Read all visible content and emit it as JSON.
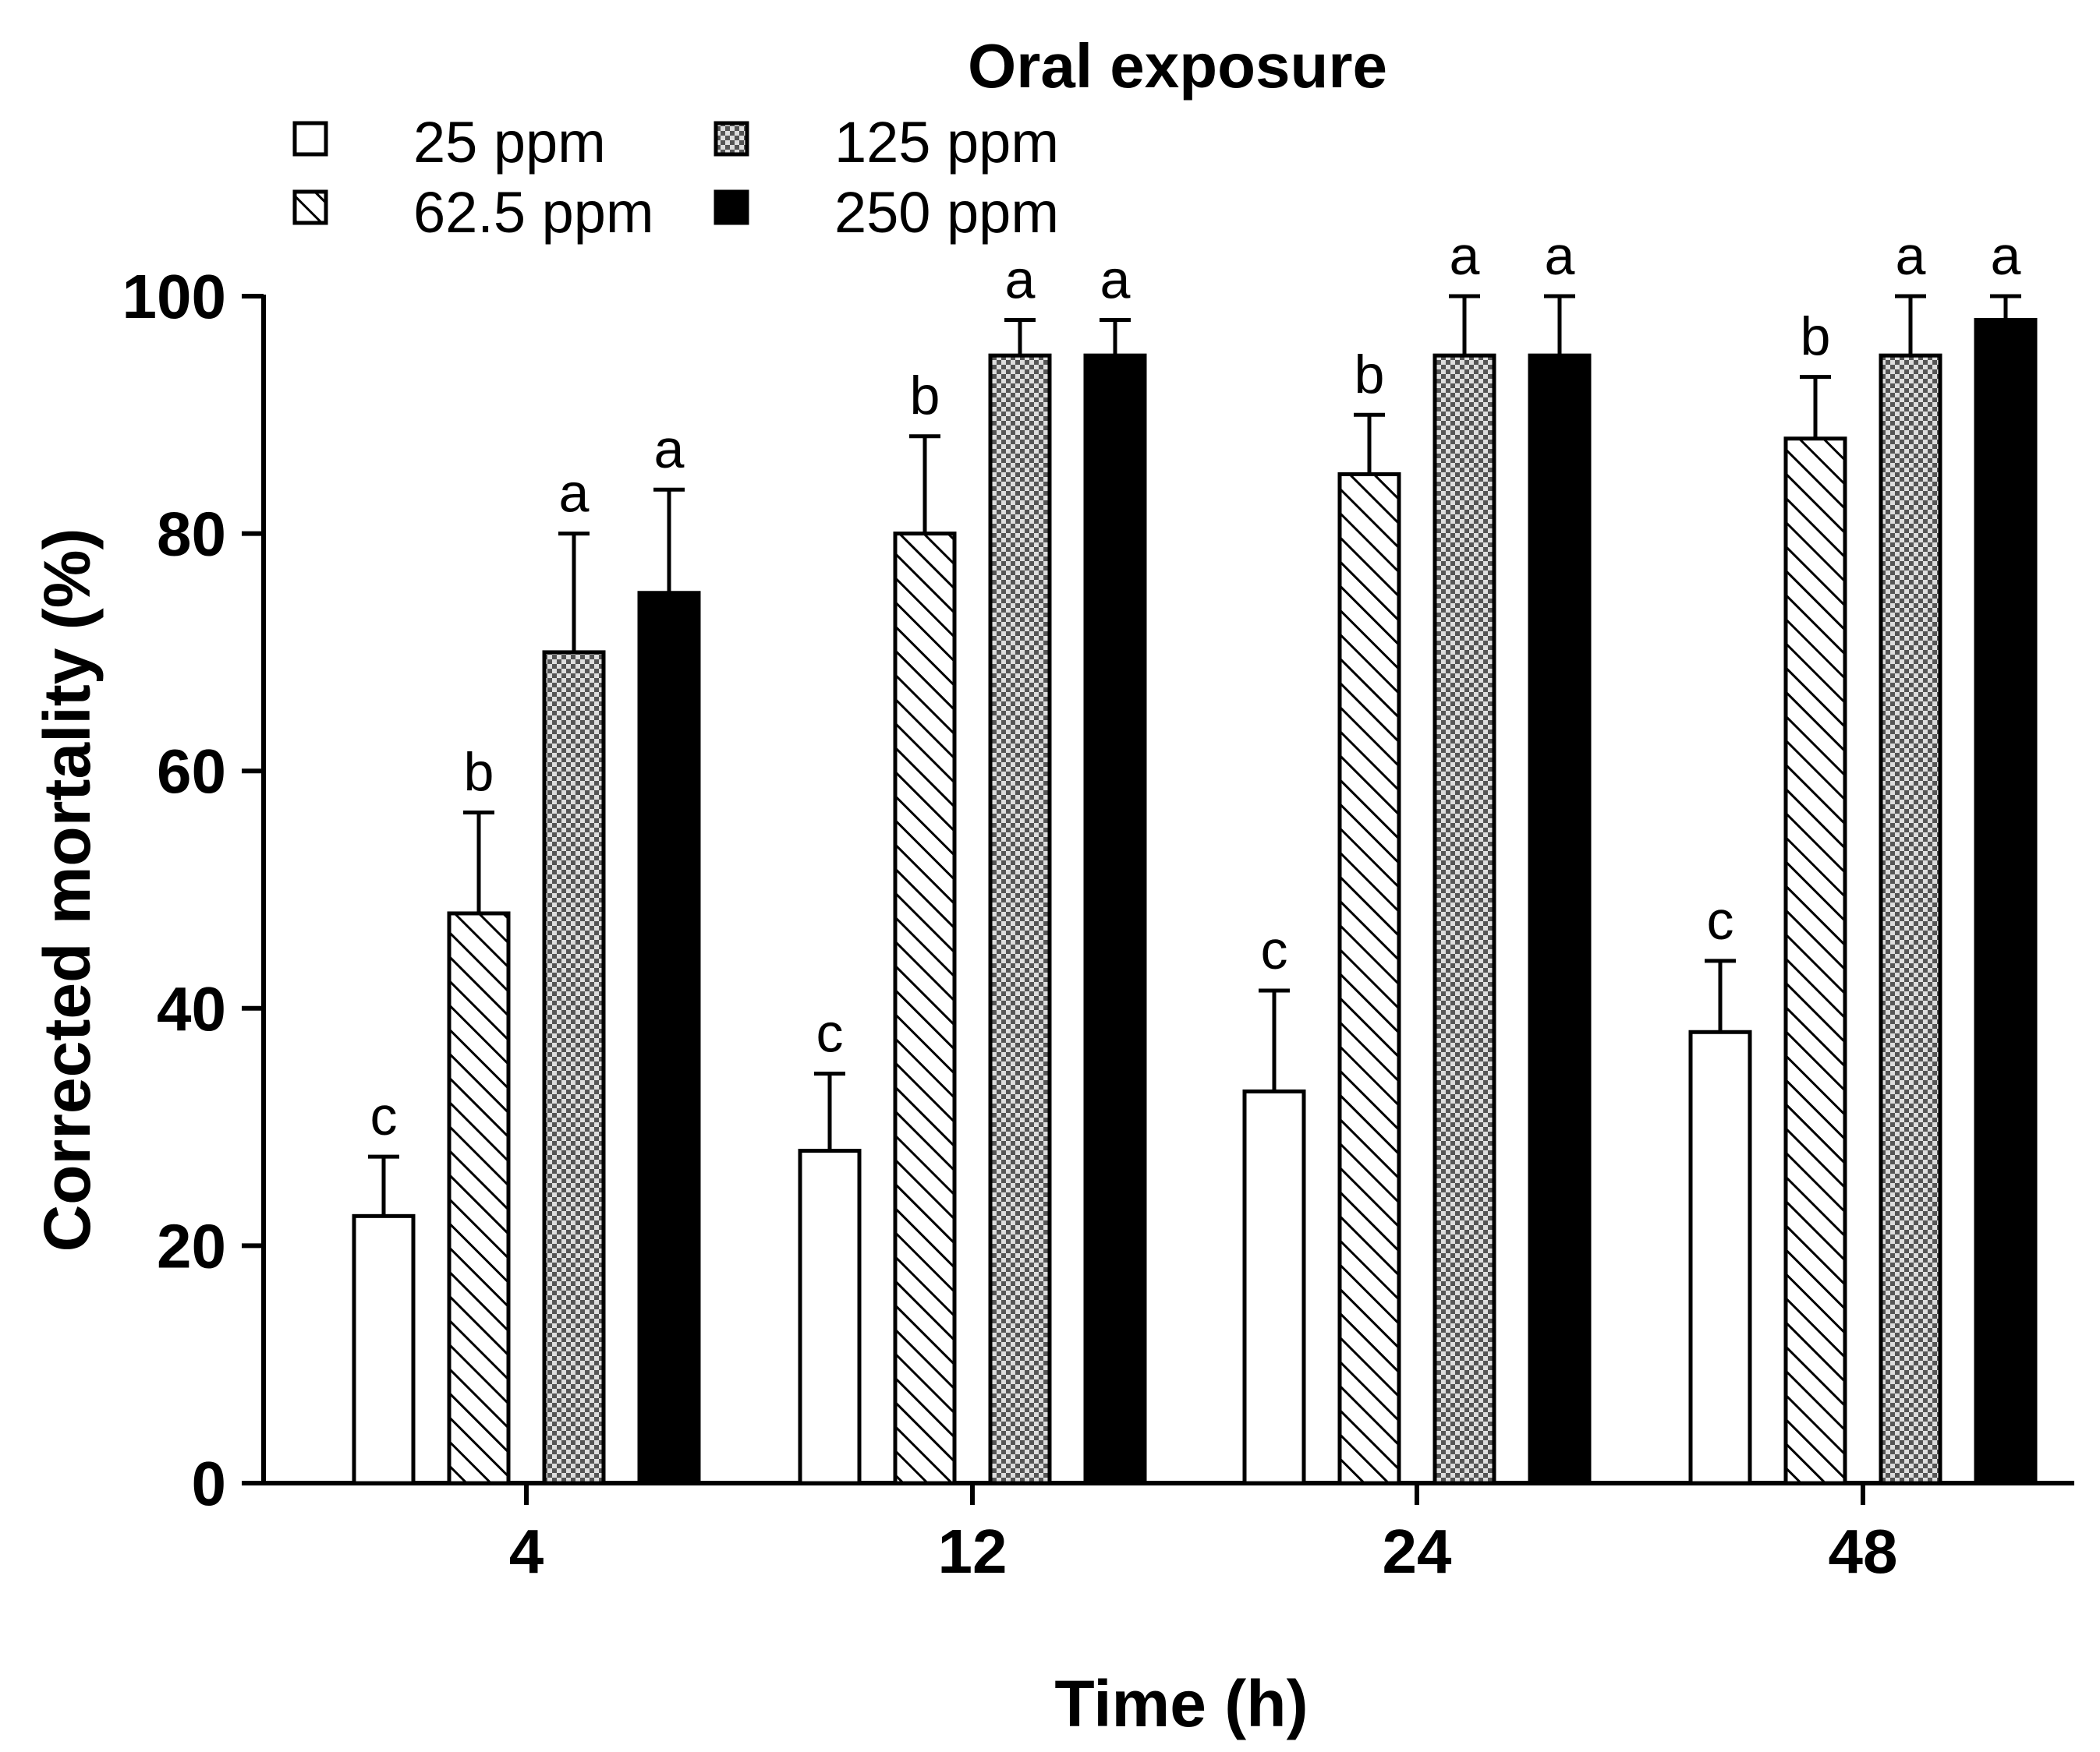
{
  "chart_data": {
    "type": "bar",
    "title": "Oral exposure",
    "xlabel": "Time (h)",
    "ylabel": "Corrected mortality (%)",
    "ylim": [
      0,
      100
    ],
    "yticks": [
      0,
      20,
      40,
      60,
      80,
      100
    ],
    "categories": [
      "4",
      "12",
      "24",
      "48"
    ],
    "series": [
      {
        "name": "25 ppm",
        "pattern": "open",
        "values": [
          22.5,
          28,
          33,
          38
        ],
        "errors": [
          5,
          6.5,
          8.5,
          6
        ],
        "letters": [
          "c",
          "c",
          "c",
          "c"
        ]
      },
      {
        "name": "62.5 ppm",
        "pattern": "hatched",
        "values": [
          48,
          80,
          85,
          88
        ],
        "errors": [
          8.5,
          8.2,
          5,
          5.2
        ],
        "letters": [
          "b",
          "b",
          "b",
          "b"
        ]
      },
      {
        "name": "125 ppm",
        "pattern": "checkered",
        "values": [
          70,
          95,
          95,
          95
        ],
        "errors": [
          10,
          3,
          5,
          5
        ],
        "letters": [
          "a",
          "a",
          "a",
          "a"
        ]
      },
      {
        "name": "250 ppm",
        "pattern": "solid",
        "values": [
          75,
          95,
          95,
          98
        ],
        "errors": [
          8.7,
          3,
          5,
          2
        ],
        "letters": [
          "a",
          "a",
          "a",
          "a"
        ]
      }
    ],
    "colors": {
      "ink": "#000000",
      "open_fill": "#ffffff",
      "solid_fill": "#000000",
      "checker_dark": "#555555",
      "checker_light": "#dddddd"
    }
  }
}
